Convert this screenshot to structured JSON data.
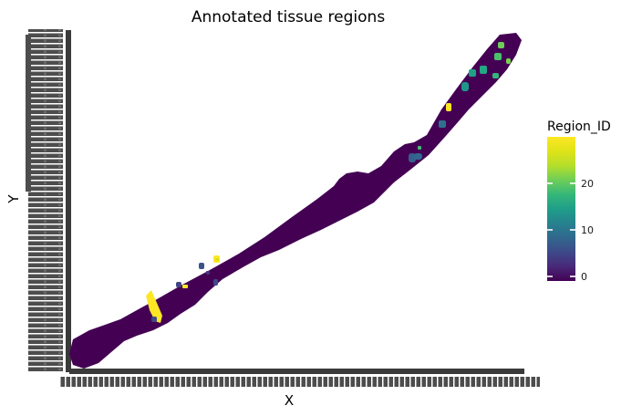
{
  "chart_data": {
    "type": "heatmap",
    "title": "Annotated tissue regions",
    "xlabel": "X",
    "ylabel": "Y",
    "grid": false,
    "legend": {
      "title": "Region_ID",
      "placement": "right",
      "colormap": "viridis",
      "range": [
        0,
        29
      ],
      "ticks": [
        0,
        10,
        20
      ],
      "tick_labels": [
        "0",
        "10",
        "20"
      ]
    },
    "background_region_id": 0,
    "background_color": "#440154",
    "regions": [
      {
        "id": 29,
        "color": "#fde725"
      },
      {
        "id": 29,
        "color": "#fde725"
      },
      {
        "id": 27,
        "color": "#d8e219"
      },
      {
        "id": 29,
        "color": "#fde725"
      },
      {
        "id": 6,
        "color": "#3b528b"
      },
      {
        "id": 5,
        "color": "#3e4989"
      },
      {
        "id": 4,
        "color": "#414487"
      },
      {
        "id": 5,
        "color": "#3e4989"
      },
      {
        "id": 3,
        "color": "#46337e"
      },
      {
        "id": 7,
        "color": "#355f8d"
      },
      {
        "id": 8,
        "color": "#31688e"
      },
      {
        "id": 9,
        "color": "#2c728e"
      },
      {
        "id": 13,
        "color": "#1f988b"
      },
      {
        "id": 14,
        "color": "#1fa187"
      },
      {
        "id": 28,
        "color": "#fde725"
      },
      {
        "id": 16,
        "color": "#22a884"
      },
      {
        "id": 18,
        "color": "#35b779"
      },
      {
        "id": 20,
        "color": "#4ac16d"
      },
      {
        "id": 22,
        "color": "#6ece58"
      },
      {
        "id": 24,
        "color": "#7ad151"
      },
      {
        "id": 19,
        "color": "#3fbc73"
      }
    ]
  }
}
